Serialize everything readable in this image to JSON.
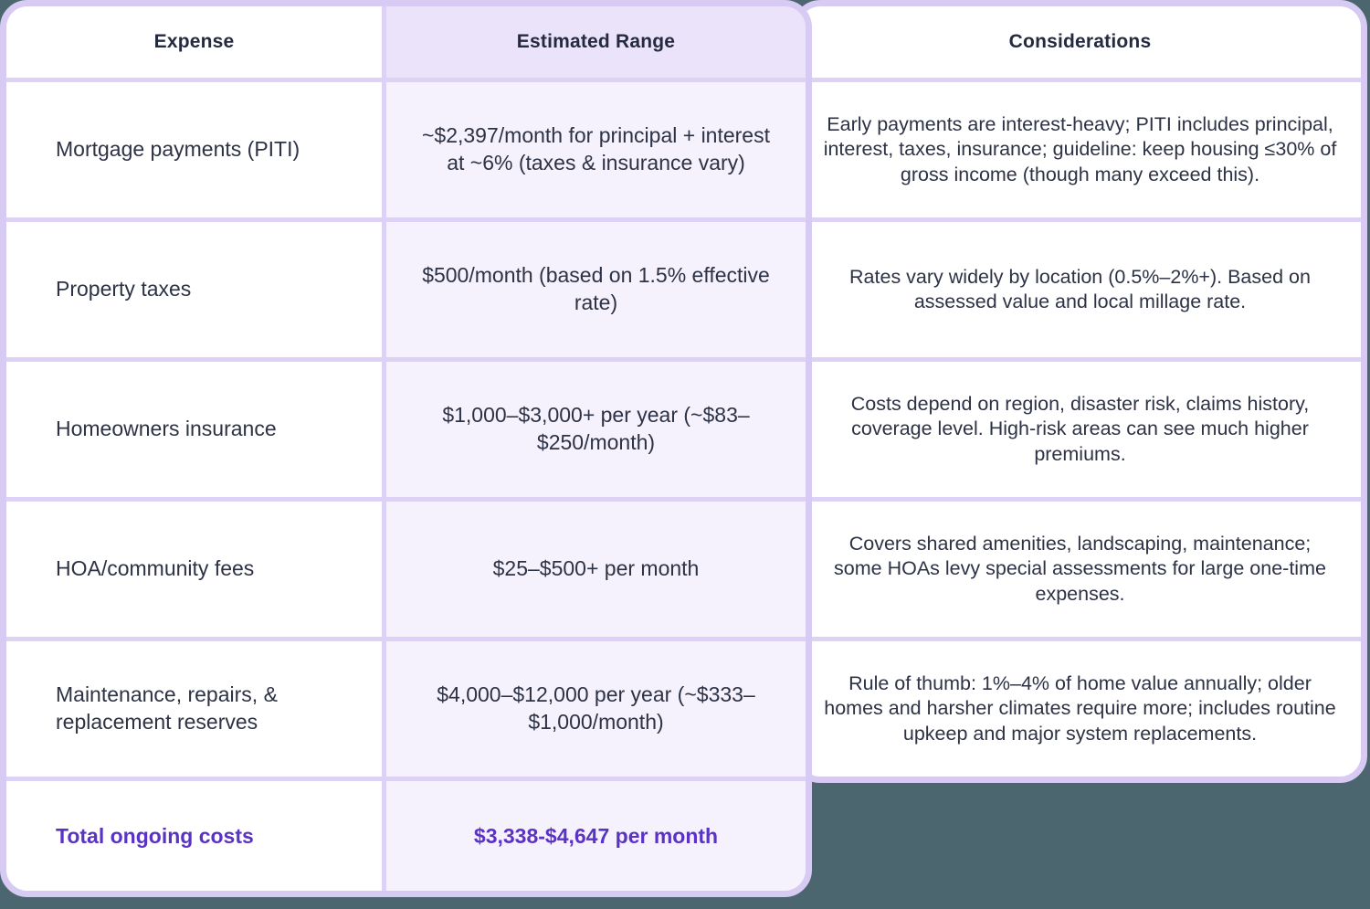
{
  "colors": {
    "page_background": "#4c6670",
    "card_border": "#d7cbf3",
    "row_separator": "#ddd2f6",
    "range_column_bg": "#f5f1fd",
    "range_header_bg": "#ebe3fa",
    "text_dark": "#2d3245",
    "accent_purple": "#5b33c4"
  },
  "table": {
    "columns": [
      "Expense",
      "Estimated Range",
      "Considerations"
    ],
    "rows": [
      {
        "expense": "Mortgage payments (PITI)",
        "estimated_range": "~$2,397/month for principal + interest at ~6% (taxes & insurance vary)",
        "considerations": "Early payments are interest-heavy; PITI includes principal, interest, taxes, insurance; guideline: keep housing ≤30% of gross income (though many exceed this)."
      },
      {
        "expense": "Property taxes",
        "estimated_range": "$500/month (based on 1.5% effective rate)",
        "considerations": "Rates vary widely by location (0.5%–2%+). Based on assessed value and local millage rate."
      },
      {
        "expense": "Homeowners insurance",
        "estimated_range": "$1,000–$3,000+ per year (~$83–$250/month)",
        "considerations": "Costs depend on region, disaster risk, claims history, coverage level. High-risk areas can see much higher premiums."
      },
      {
        "expense": "HOA/community fees",
        "estimated_range": "$25–$500+ per month",
        "considerations": "Covers shared amenities, landscaping, maintenance; some HOAs levy special assessments for large one-time expenses."
      },
      {
        "expense": "Maintenance, repairs, & replacement reserves",
        "estimated_range": "$4,000–$12,000 per year (~$333–$1,000/month)",
        "considerations": "Rule of thumb: 1%–4% of home value annually; older homes and harsher climates require more; includes routine upkeep and major system replacements."
      }
    ],
    "total_row": {
      "label": "Total ongoing costs",
      "value": "$3,338-$4,647 per month"
    }
  },
  "chart_data": {
    "type": "table",
    "columns": [
      "Expense",
      "Estimated Range",
      "Considerations"
    ],
    "rows": [
      [
        "Mortgage payments (PITI)",
        "~$2,397/month for principal + interest at ~6% (taxes & insurance vary)",
        "Early payments are interest-heavy; PITI includes principal, interest, taxes, insurance; guideline: keep housing ≤30% of gross income (though many exceed this)."
      ],
      [
        "Property taxes",
        "$500/month (based on 1.5% effective rate)",
        "Rates vary widely by location (0.5%–2%+). Based on assessed value and local millage rate."
      ],
      [
        "Homeowners insurance",
        "$1,000–$3,000+ per year (~$83–$250/month)",
        "Costs depend on region, disaster risk, claims history, coverage level. High-risk areas can see much higher premiums."
      ],
      [
        "HOA/community fees",
        "$25–$500+ per month",
        "Covers shared amenities, landscaping, maintenance; some HOAs levy special assessments for large one-time expenses."
      ],
      [
        "Maintenance, repairs, & replacement reserves",
        "$4,000–$12,000 per year (~$333–$1,000/month)",
        "Rule of thumb: 1%–4% of home value annually; older homes and harsher climates require more; includes routine upkeep and major system replacements."
      ],
      [
        "Total ongoing costs",
        "$3,338-$4,647 per month",
        ""
      ]
    ],
    "notes": "Monthly ongoing homeownership cost table; middle column highlighted lavender; total row in bold purple spans first two columns only."
  }
}
